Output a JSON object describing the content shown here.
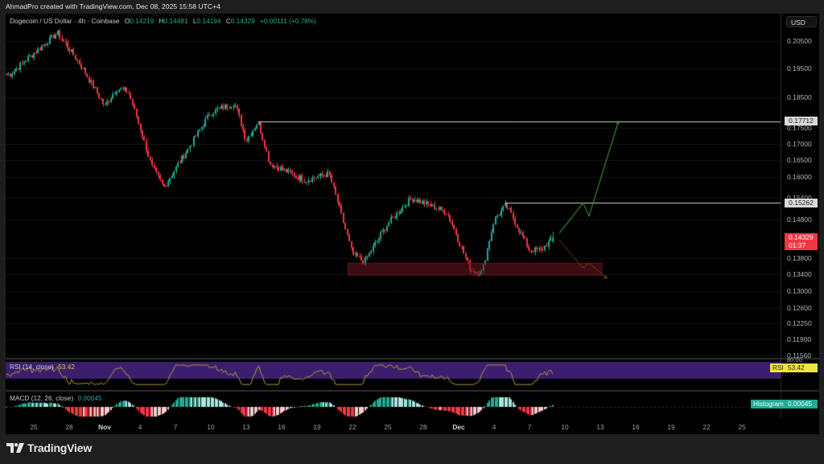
{
  "credit": "AhmadPro created with TradingView.com, Dec 08, 2025 15:58 UTC+4",
  "legend": {
    "symbol": "Dogecoin / US Dollar · 4h · Coinbase",
    "open_label": "O",
    "open": "0.14219",
    "high_label": "H",
    "high": "0.14481",
    "low_label": "L",
    "low": "0.14194",
    "close_label": "C",
    "close": "0.14329",
    "change": "+0.00111 (+0.78%)"
  },
  "currency_button": "USD",
  "colors": {
    "up": "#22ab94",
    "down": "#f23645",
    "rsi_band": "#3b1f6e",
    "rsi_line": "#b59a3a",
    "zone": "#6b1520",
    "bull_path": "#3c8a2e",
    "bear_path": "#7a4a10",
    "level_line": "#cfcfcf"
  },
  "price_axis": {
    "ticks": [
      "0.20500",
      "0.19500",
      "0.18500",
      "0.17500",
      "0.17000",
      "0.16500",
      "0.16000",
      "0.15400",
      "0.14800",
      "0.13800",
      "0.13400",
      "0.13000",
      "0.12600",
      "0.12250",
      "0.11900",
      "0.11560"
    ],
    "level_labels": [
      "0.17712",
      "0.15262"
    ],
    "last_price": "0.14329",
    "countdown": "01:37"
  },
  "time_axis": [
    {
      "label": "25"
    },
    {
      "label": "28"
    },
    {
      "label": "Nov",
      "bold": true
    },
    {
      "label": "4"
    },
    {
      "label": "7"
    },
    {
      "label": "10"
    },
    {
      "label": "13"
    },
    {
      "label": "16"
    },
    {
      "label": "19"
    },
    {
      "label": "22"
    },
    {
      "label": "25"
    },
    {
      "label": "28"
    },
    {
      "label": "Dec",
      "bold": true
    },
    {
      "label": "4"
    },
    {
      "label": "7"
    },
    {
      "label": "10"
    },
    {
      "label": "13"
    },
    {
      "label": "16"
    },
    {
      "label": "19"
    },
    {
      "label": "22"
    },
    {
      "label": "25"
    }
  ],
  "rsi": {
    "title": "RSI (14, close)",
    "value": "53.42",
    "badge": "RSI",
    "upper_tick": "80.00"
  },
  "macd": {
    "title": "MACD (12, 26, close)",
    "value": "0.00045",
    "badge": "Histogram"
  },
  "footer": {
    "brand": "TradingView"
  },
  "chart_data": {
    "type": "candlestick",
    "title": "Dogecoin / US Dollar · 4h · Coinbase",
    "xlabel": "",
    "ylabel": "USD",
    "x_ticks": [
      "25",
      "28",
      "Nov",
      "4",
      "7",
      "10",
      "13",
      "16",
      "19",
      "22",
      "25",
      "28",
      "Dec",
      "4",
      "7",
      "10",
      "13",
      "16",
      "19",
      "22",
      "25"
    ],
    "ylim": [
      0.1156,
      0.209
    ],
    "last": {
      "open": 0.14219,
      "high": 0.14481,
      "low": 0.14194,
      "close": 0.14329,
      "change": 0.00111,
      "change_pct": 0.78
    },
    "price_path_keypoints": [
      {
        "date": "Oct 23",
        "price": 0.193
      },
      {
        "date": "Oct 27",
        "price": 0.208
      },
      {
        "date": "Oct 29",
        "price": 0.196
      },
      {
        "date": "Oct 31",
        "price": 0.182
      },
      {
        "date": "Nov 1",
        "price": 0.188
      },
      {
        "date": "Nov 2",
        "price": 0.187
      },
      {
        "date": "Nov 4",
        "price": 0.163
      },
      {
        "date": "Nov 5",
        "price": 0.157
      },
      {
        "date": "Nov 7",
        "price": 0.168
      },
      {
        "date": "Nov 9",
        "price": 0.18
      },
      {
        "date": "Nov 11",
        "price": 0.183
      },
      {
        "date": "Nov 12",
        "price": 0.171
      },
      {
        "date": "Nov 13",
        "price": 0.177
      },
      {
        "date": "Nov 14",
        "price": 0.164
      },
      {
        "date": "Nov 17",
        "price": 0.159
      },
      {
        "date": "Nov 19",
        "price": 0.161
      },
      {
        "date": "Nov 21",
        "price": 0.139
      },
      {
        "date": "Nov 22",
        "price": 0.137
      },
      {
        "date": "Nov 24",
        "price": 0.147
      },
      {
        "date": "Nov 26",
        "price": 0.154
      },
      {
        "date": "Nov 29",
        "price": 0.15
      },
      {
        "date": "Dec 1",
        "price": 0.135
      },
      {
        "date": "Dec 2",
        "price": 0.1345
      },
      {
        "date": "Dec 3",
        "price": 0.148
      },
      {
        "date": "Dec 4",
        "price": 0.152
      },
      {
        "date": "Dec 6",
        "price": 0.14
      },
      {
        "date": "Dec 7",
        "price": 0.14
      },
      {
        "date": "Dec 8",
        "price": 0.1433
      }
    ],
    "annotations": [
      {
        "type": "horizontal_line",
        "price": 0.17712,
        "from": "Nov 13"
      },
      {
        "type": "horizontal_line",
        "price": 0.15262,
        "from": "Dec 4"
      },
      {
        "type": "rectangle_zone",
        "price_top": 0.1368,
        "price_bottom": 0.1338,
        "from": "Nov 21",
        "to": "Dec 12",
        "color": "#6b1520"
      },
      {
        "type": "path",
        "name": "bullish projection",
        "color": "green",
        "points": [
          {
            "date": "Dec 8",
            "price": 0.1445
          },
          {
            "date": "Dec 10",
            "price": 0.1526
          },
          {
            "date": "Dec 10.5",
            "price": 0.149
          },
          {
            "date": "Dec 13",
            "price": 0.1771
          }
        ]
      },
      {
        "type": "path",
        "name": "bearish projection",
        "color": "brown",
        "points": [
          {
            "date": "Dec 8",
            "price": 0.1425
          },
          {
            "date": "Dec 10",
            "price": 0.1355
          },
          {
            "date": "Dec 10.5",
            "price": 0.1368
          },
          {
            "date": "Dec 12",
            "price": 0.133
          }
        ]
      }
    ],
    "indicators": [
      {
        "name": "RSI (14, close)",
        "value": 53.42,
        "band": [
          30,
          70
        ]
      },
      {
        "name": "MACD (12, 26, close)",
        "histogram": 0.00045
      }
    ],
    "grid": true
  }
}
